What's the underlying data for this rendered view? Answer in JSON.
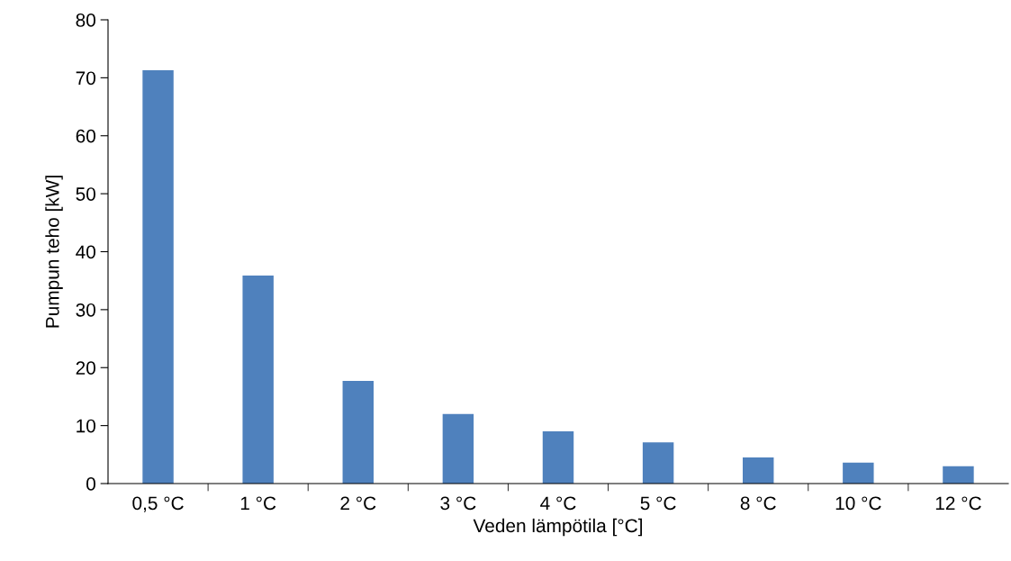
{
  "chart_data": {
    "type": "bar",
    "xlabel": "Veden lämpötila [°C]",
    "ylabel": "Pumpun teho [kW]",
    "categories": [
      "0,5 °C",
      "1 °C",
      "2 °C",
      "3 °C",
      "4 °C",
      "5 °C",
      "8 °C",
      "10 °C",
      "12 °C"
    ],
    "values": [
      71.3,
      35.9,
      17.7,
      12.0,
      9.0,
      7.1,
      4.5,
      3.6,
      3.0
    ],
    "color": "#4f81bd",
    "ylim": [
      0,
      80
    ],
    "yticks": [
      0,
      10,
      20,
      30,
      40,
      50,
      60,
      70,
      80
    ],
    "grid": false,
    "legend": false
  }
}
